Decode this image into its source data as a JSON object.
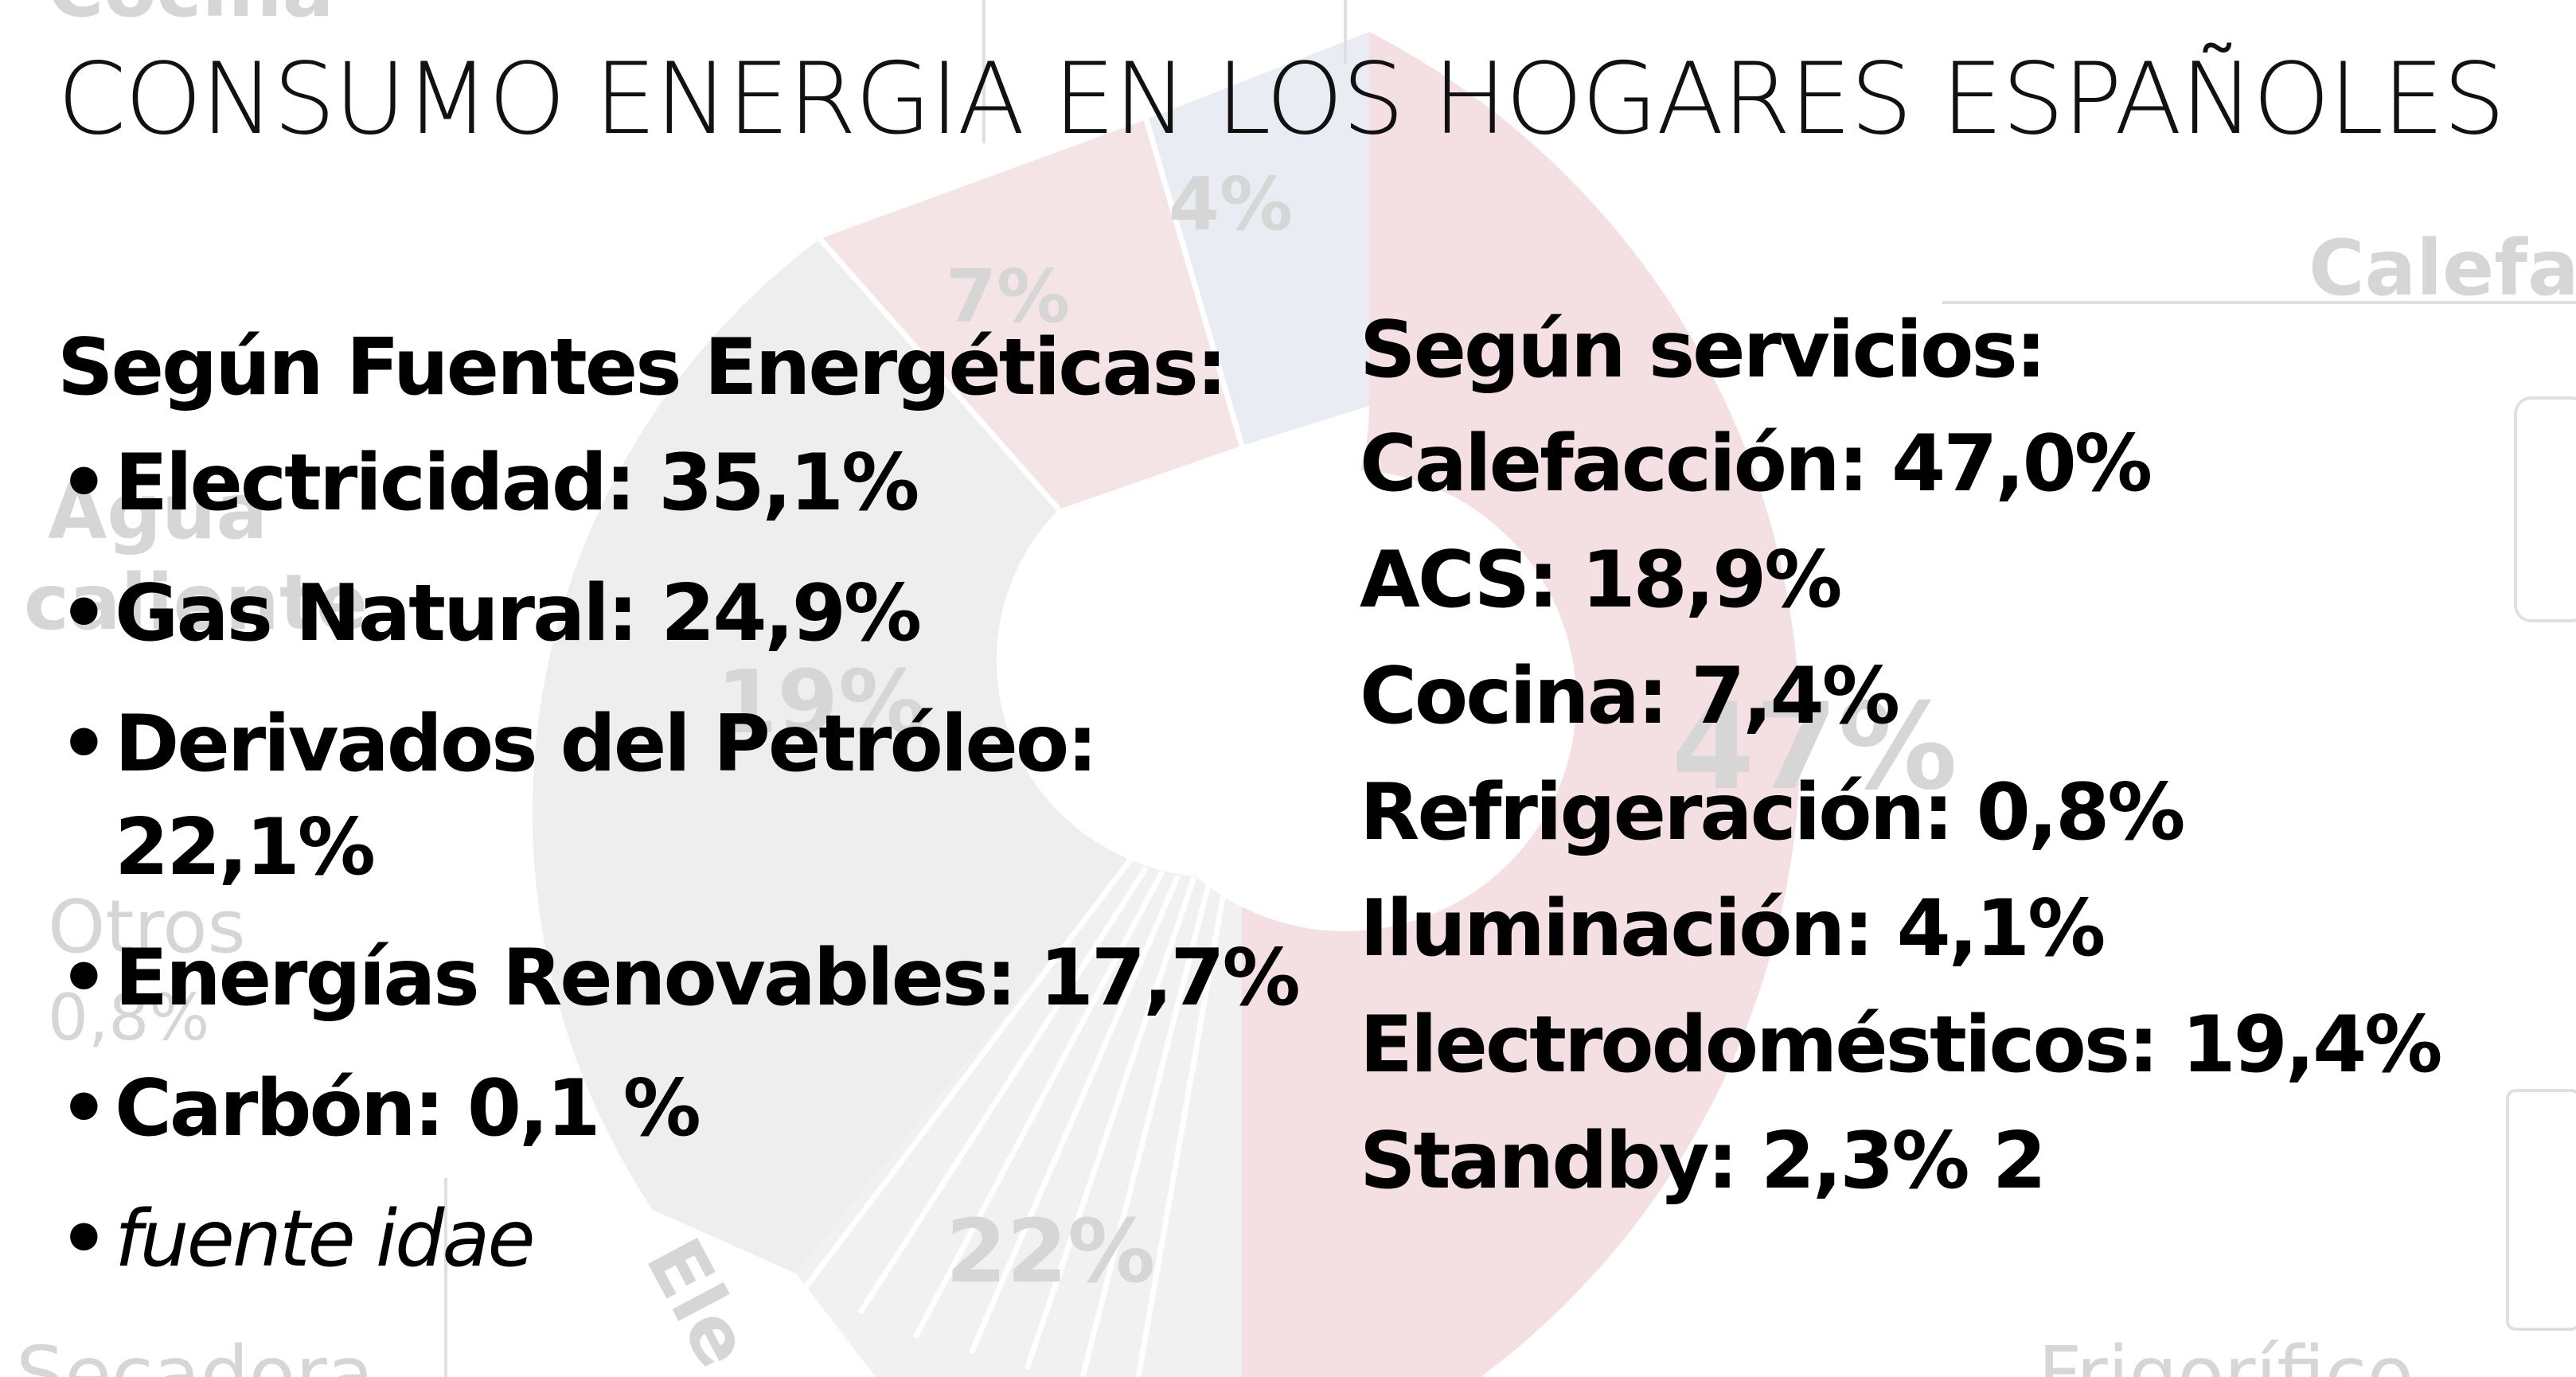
{
  "slide": {
    "title": "CONSUMO ENERGIA EN LOS HOGARES ESPAÑOLES"
  },
  "left": {
    "heading": "Según Fuentes Energéticas:",
    "items": [
      "Electricidad: 35,1%",
      "Gas Natural: 24,9%",
      "Derivados del Petróleo: 22,1%",
      "Energías Renovables: 17,7%",
      "Carbón: 0,1 %",
      "fuente idae"
    ],
    "bullet": "•"
  },
  "right": {
    "heading": "Según servicios:",
    "items": [
      "Calefacción: 47,0%",
      "ACS: 18,9%",
      "Cocina: 7,4%",
      "Refrigeración: 0,8%",
      "Iluminación: 4,1%",
      "Electrodomésticos: 19,4%",
      "Standby: 2,3% 2"
    ]
  },
  "background": {
    "labels": [
      "Cocina",
      "4%",
      "7%",
      "Calefa",
      "Agua caliente",
      "19%",
      "47%",
      "Otros",
      "0,8%",
      "22%",
      "Ele",
      "Secadora",
      "Frigorífico"
    ],
    "colors": {
      "red_sector": "#f3dcdf",
      "grey_sector": "#ececec",
      "blue_sector": "#e6e9ef",
      "label_grey": "#d2d2d2"
    }
  }
}
